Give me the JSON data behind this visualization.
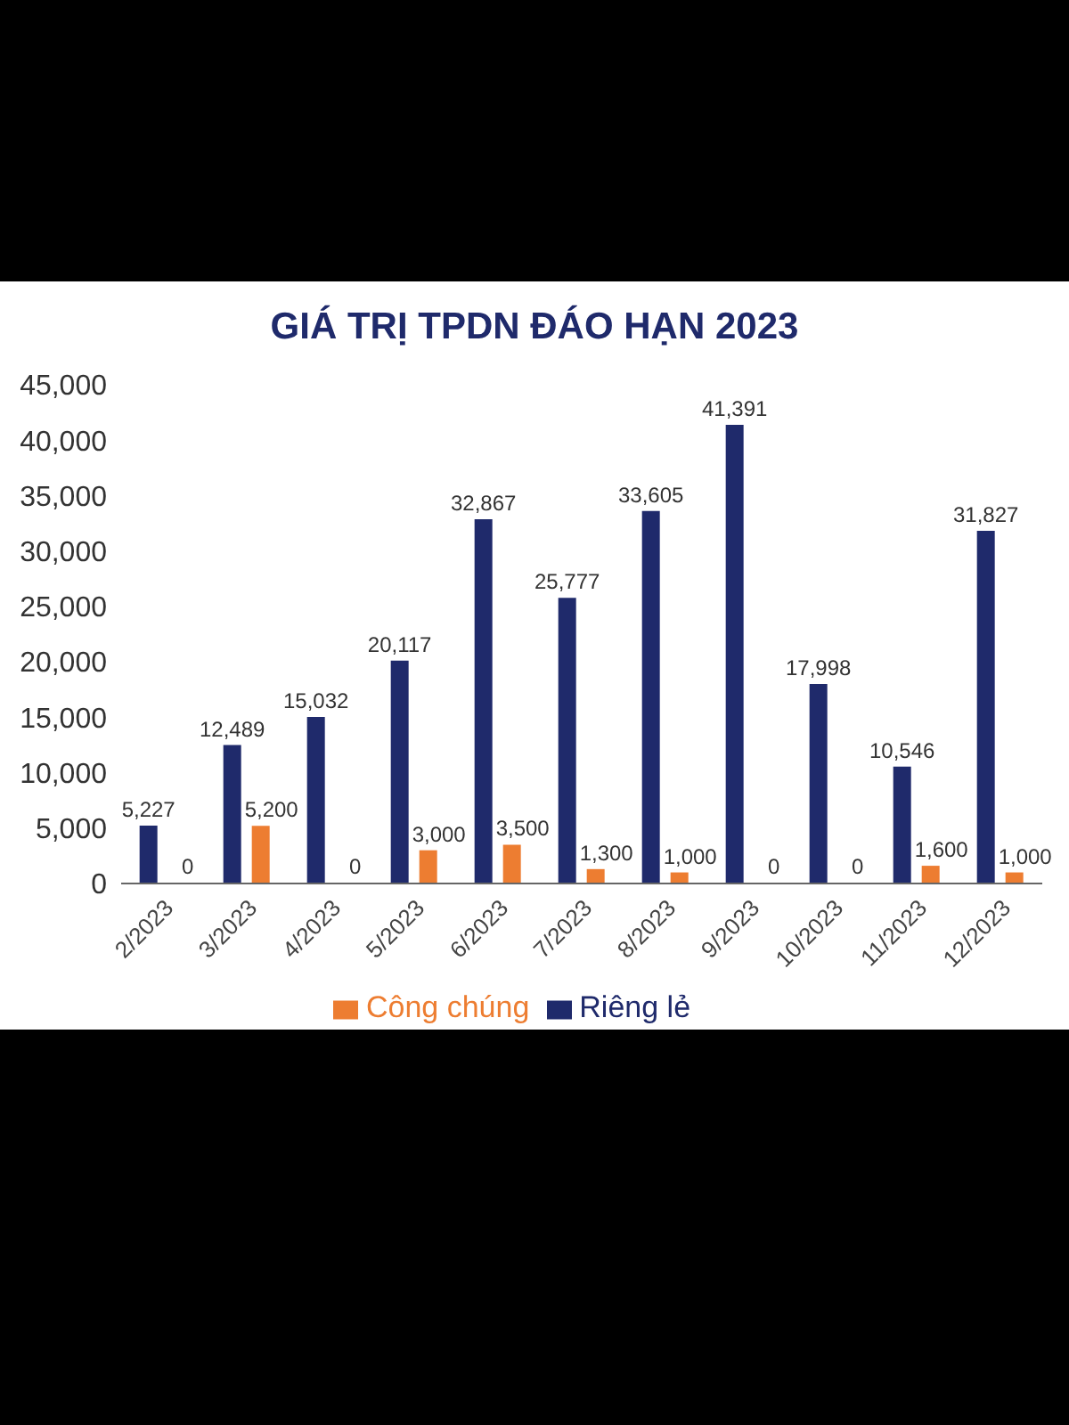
{
  "chart_data": {
    "type": "bar",
    "title": "GIÁ TRỊ TPDN ĐÁO HẠN 2023",
    "categories": [
      "2/2023",
      "3/2023",
      "4/2023",
      "5/2023",
      "6/2023",
      "7/2023",
      "8/2023",
      "9/2023",
      "10/2023",
      "11/2023",
      "12/2023"
    ],
    "series": [
      {
        "name": "Riêng lẻ",
        "color": "#1f2a6b",
        "values": [
          5227,
          12489,
          15032,
          20117,
          32867,
          25777,
          33605,
          41391,
          17998,
          10546,
          31827
        ],
        "value_labels": [
          "5,227",
          "12,489",
          "15,032",
          "20,117",
          "32,867",
          "25,777",
          "33,605",
          "41,391",
          "17,998",
          "10,546",
          "31,827"
        ]
      },
      {
        "name": "Công chúng",
        "color": "#ed7d31",
        "values": [
          0,
          5200,
          0,
          3000,
          3500,
          1300,
          1000,
          0,
          0,
          1600,
          1000
        ],
        "value_labels": [
          "0",
          "5,200",
          "0",
          "3,000",
          "3,500",
          "1,300",
          "1,000",
          "0",
          "0",
          "1,600",
          "1,000"
        ]
      }
    ],
    "ylim": [
      0,
      45000
    ],
    "yticks": [
      0,
      {
        "value": 5000,
        "label": "5,000"
      },
      {
        "value": 10000,
        "label": "10,000"
      },
      {
        "value": 15000,
        "label": "15,000"
      },
      {
        "value": 20000,
        "label": "20,000"
      },
      {
        "value": 25000,
        "label": "25,000"
      },
      {
        "value": 30000,
        "label": "30,000"
      },
      {
        "value": 35000,
        "label": "35,000"
      },
      {
        "value": 40000,
        "label": "40,000"
      },
      {
        "value": 45000,
        "label": "45,000"
      }
    ],
    "grid": false,
    "legend": "bottom"
  }
}
